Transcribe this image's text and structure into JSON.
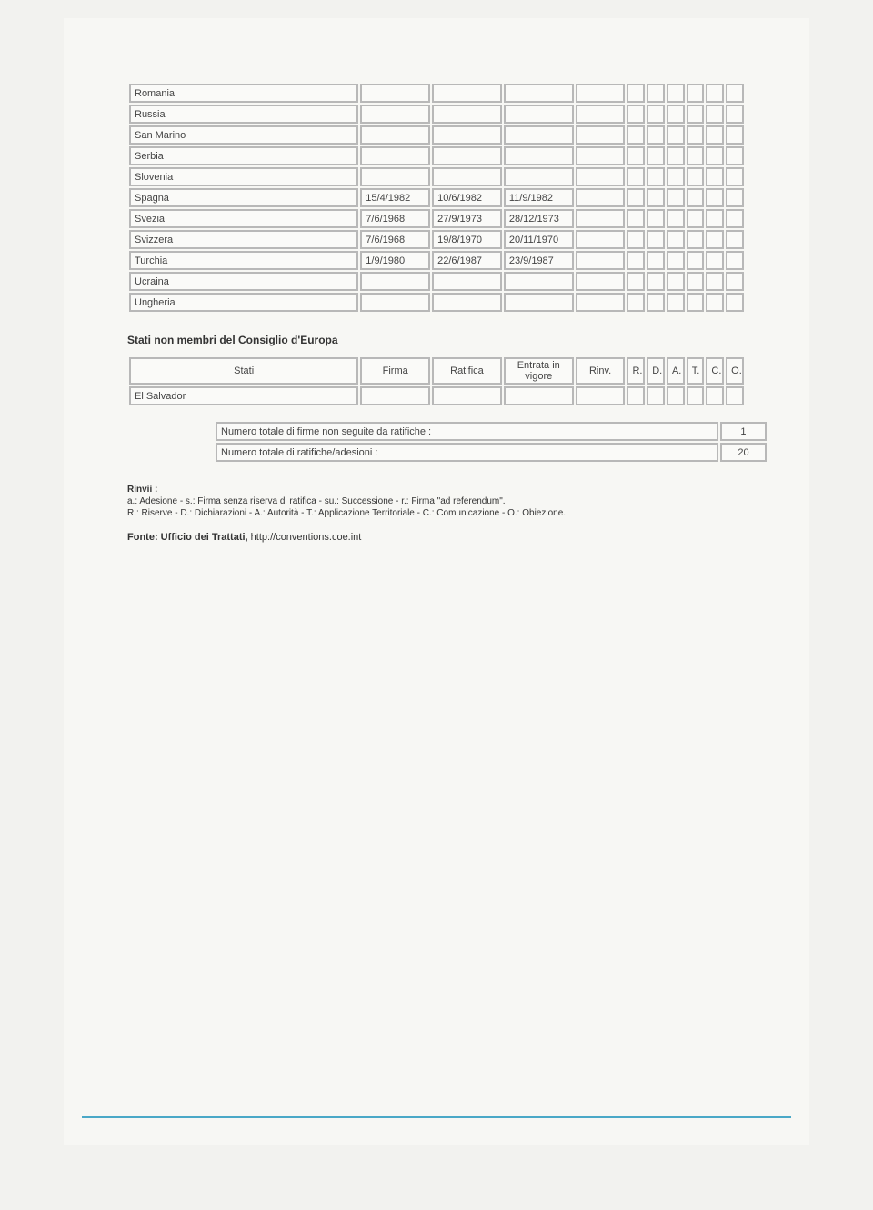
{
  "main_rows": [
    {
      "c": "Romania",
      "f": "",
      "r": "",
      "e": ""
    },
    {
      "c": "Russia",
      "f": "",
      "r": "",
      "e": ""
    },
    {
      "c": "San Marino",
      "f": "",
      "r": "",
      "e": ""
    },
    {
      "c": "Serbia",
      "f": "",
      "r": "",
      "e": ""
    },
    {
      "c": "Slovenia",
      "f": "",
      "r": "",
      "e": ""
    },
    {
      "c": "Spagna",
      "f": "15/4/1982",
      "r": "10/6/1982",
      "e": "11/9/1982"
    },
    {
      "c": "Svezia",
      "f": "7/6/1968",
      "r": "27/9/1973",
      "e": "28/12/1973"
    },
    {
      "c": "Svizzera",
      "f": "7/6/1968",
      "r": "19/8/1970",
      "e": "20/11/1970"
    },
    {
      "c": "Turchia",
      "f": "1/9/1980",
      "r": "22/6/1987",
      "e": "23/9/1987"
    },
    {
      "c": "Ucraina",
      "f": "",
      "r": "",
      "e": ""
    },
    {
      "c": "Ungheria",
      "f": "",
      "r": "",
      "e": ""
    }
  ],
  "section2_title": "Stati non membri del Consiglio d'Europa",
  "headers": {
    "stati": "Stati",
    "firma": "Firma",
    "ratifica": "Ratifica",
    "entrata": "Entrata in vigore",
    "rinv": "Rinv.",
    "R": "R.",
    "D": "D.",
    "A": "A.",
    "T": "T.",
    "C": "C.",
    "O": "O."
  },
  "nonmember_rows": [
    {
      "c": "El Salvador",
      "f": "",
      "r": "",
      "e": ""
    }
  ],
  "summary": [
    {
      "label": "Numero totale di firme non seguite da ratifiche :",
      "value": "1"
    },
    {
      "label": "Numero totale di ratifiche/adesioni :",
      "value": "20"
    }
  ],
  "rinvii": {
    "title": "Rinvii :",
    "line1": "a.: Adesione - s.: Firma senza riserva di ratifica - su.: Successione - r.: Firma \"ad referendum\".",
    "line2": "R.: Riserve - D.: Dichiarazioni - A.: Autorità - T.: Applicazione Territoriale - C.: Comunicazione - O.: Obiezione."
  },
  "fonte": {
    "prefix": "Fonte: Ufficio dei Trattati, ",
    "url": "http://conventions.coe.int"
  }
}
